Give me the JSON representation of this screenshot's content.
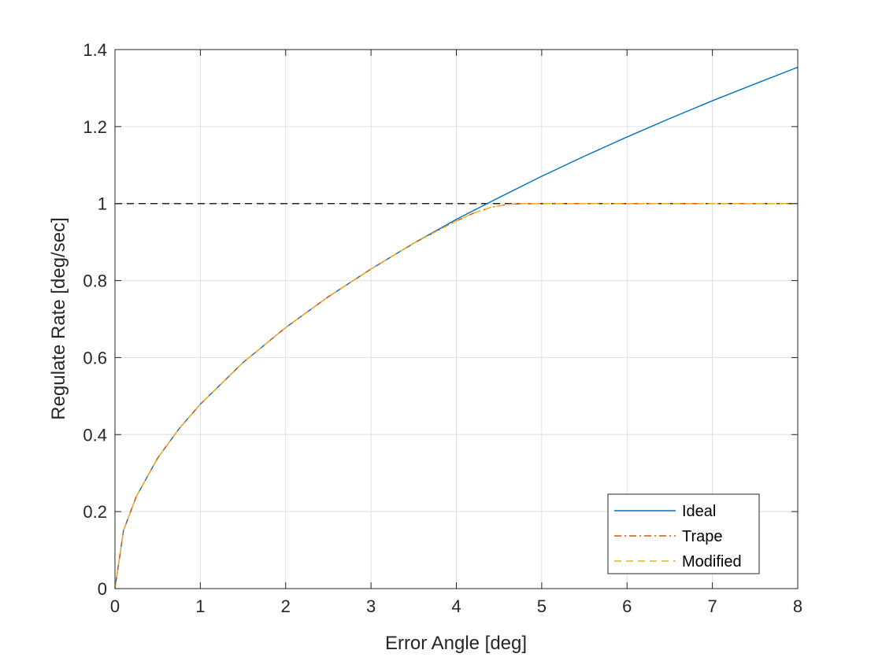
{
  "chart_data": {
    "type": "line",
    "title": "",
    "xlabel": "Error Angle [deg]",
    "ylabel": "Regulate Rate [deg/sec]",
    "xlim": [
      0,
      8
    ],
    "ylim": [
      0,
      1.4
    ],
    "xticks": [
      0,
      1,
      2,
      3,
      4,
      5,
      6,
      7,
      8
    ],
    "yticks": [
      0,
      0.2,
      0.4,
      0.6,
      0.8,
      1,
      1.2,
      1.4
    ],
    "xtick_labels": [
      "0",
      "1",
      "2",
      "3",
      "4",
      "5",
      "6",
      "7",
      "8"
    ],
    "ytick_labels": [
      "0",
      "0.2",
      "0.4",
      "0.6",
      "0.8",
      "1",
      "1.2",
      "1.4"
    ],
    "grid": true,
    "legend_position": "bottom-right",
    "reference_line": {
      "y": 1,
      "style": "dashed",
      "color": "#000000"
    },
    "series": [
      {
        "name": "Ideal",
        "color": "#0072bd",
        "style": "solid",
        "x": [
          0,
          0.1,
          0.25,
          0.5,
          0.75,
          1,
          1.5,
          2,
          2.5,
          3,
          3.5,
          4,
          4.36,
          5,
          5.5,
          6,
          6.5,
          7,
          7.5,
          8
        ],
        "y": [
          0,
          0.151,
          0.239,
          0.339,
          0.415,
          0.479,
          0.587,
          0.678,
          0.758,
          0.83,
          0.897,
          0.959,
          1.0,
          1.071,
          1.123,
          1.173,
          1.221,
          1.267,
          1.311,
          1.354
        ]
      },
      {
        "name": "Trape",
        "color": "#d95319",
        "style": "dashdot",
        "x": [
          0,
          0.1,
          0.25,
          0.5,
          0.75,
          1,
          1.5,
          2,
          2.5,
          3,
          3.5,
          4,
          4.2,
          4.4,
          4.6,
          4.8,
          5,
          6,
          7,
          8
        ],
        "y": [
          0,
          0.151,
          0.239,
          0.339,
          0.415,
          0.479,
          0.587,
          0.678,
          0.758,
          0.83,
          0.897,
          0.955,
          0.975,
          0.99,
          0.998,
          1.0,
          1.0,
          1.0,
          1.0,
          1.0
        ]
      },
      {
        "name": "Modified",
        "color": "#edb120",
        "style": "dashed",
        "x": [
          0,
          0.1,
          0.25,
          0.5,
          0.75,
          1,
          1.5,
          2,
          2.5,
          3,
          3.5,
          4,
          4.2,
          4.4,
          4.6,
          4.8,
          5,
          6,
          7,
          8
        ],
        "y": [
          0,
          0.151,
          0.239,
          0.339,
          0.415,
          0.479,
          0.587,
          0.678,
          0.758,
          0.83,
          0.897,
          0.955,
          0.975,
          0.99,
          0.998,
          1.0,
          1.0,
          1.0,
          1.0,
          1.0
        ]
      }
    ]
  }
}
